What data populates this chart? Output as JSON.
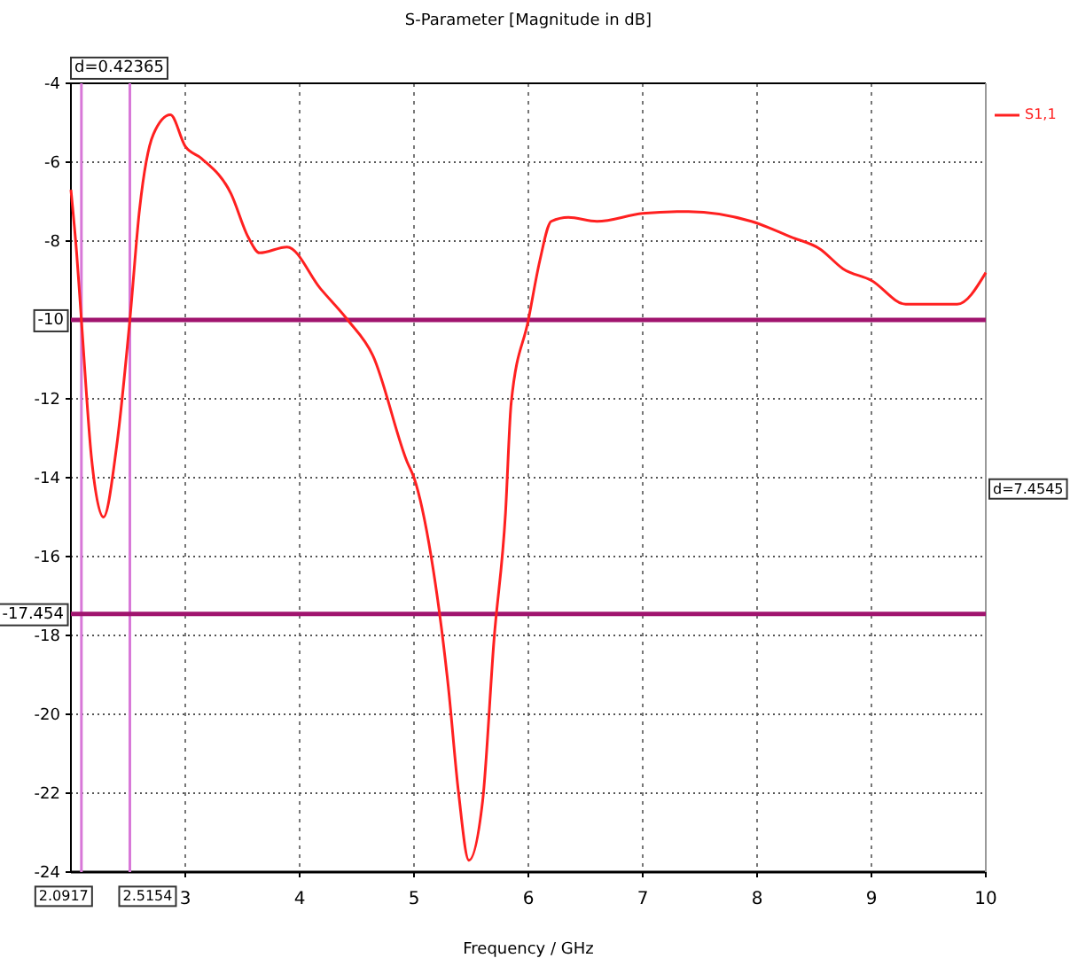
{
  "chart_data": {
    "type": "line",
    "title": "S-Parameter [Magnitude in dB]",
    "xlabel": "Frequency / GHz",
    "xlim": [
      2,
      10
    ],
    "xticks": [
      3,
      4,
      5,
      6,
      7,
      8,
      9,
      10
    ],
    "ylim": [
      -24,
      -4
    ],
    "yticks": [
      -4,
      -6,
      -8,
      -12,
      -14,
      -16,
      -18,
      -20,
      -22,
      -24
    ],
    "grid": true,
    "legend": "top right",
    "line_style": "solid",
    "marker": "none",
    "series": [
      {
        "name": "S1,1",
        "color": "#ff2020",
        "x": [
          2,
          2.05,
          2.0917,
          2.18,
          2.285,
          2.4,
          2.5154,
          2.6,
          2.72,
          2.87,
          3,
          3.14,
          3.4,
          3.55,
          3.65,
          3.89,
          4.18,
          4.42,
          4.64,
          4.94,
          5,
          5.15,
          5.3,
          5.39,
          5.48,
          5.6,
          5.7,
          5.8,
          5.85,
          6,
          6.1,
          6.2,
          6.35,
          6.6,
          7,
          7.4,
          7.95,
          8.3,
          8.55,
          8.75,
          9,
          9.3,
          9.55,
          9.75,
          10
        ],
        "values": [
          -6.7,
          -8.3,
          -10,
          -13.5,
          -15,
          -13.2,
          -10,
          -7.2,
          -5.3,
          -4.8,
          -5.6,
          -5.9,
          -6.8,
          -7.9,
          -8.3,
          -8.15,
          -9.2,
          -10,
          -10.9,
          -13.6,
          -14,
          -16,
          -19.3,
          -22,
          -23.7,
          -22.2,
          -18.1,
          -14.9,
          -12.1,
          -10,
          -8.5,
          -7.5,
          -7.4,
          -7.5,
          -7.3,
          -7.25,
          -7.5,
          -7.9,
          -8.2,
          -8.7,
          -9,
          -9.6,
          -9.6,
          -9.6,
          -8.8
        ]
      }
    ],
    "ref_lines": [
      {
        "axis": "x",
        "value": 2.0917,
        "label": "2.0917",
        "color": "#d878d8"
      },
      {
        "axis": "x",
        "value": 2.5154,
        "label": "2.5154",
        "color": "#d878d8"
      },
      {
        "axis": "y",
        "value": -10,
        "label": "-10",
        "color": "#a0146e"
      },
      {
        "axis": "y",
        "value": -17.454,
        "label": "-17.454",
        "color": "#a0146e"
      }
    ],
    "annotations": [
      "d=0.42365",
      "d=7.4545"
    ]
  }
}
